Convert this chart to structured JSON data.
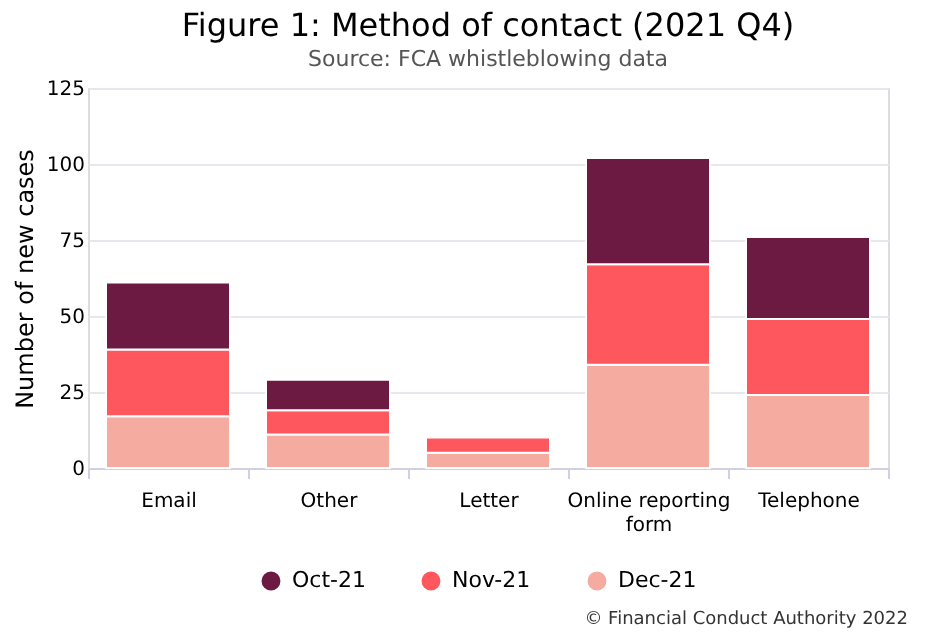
{
  "chart_data": {
    "type": "bar",
    "title": "Figure 1: Method of contact (2021 Q4)",
    "subtitle": "Source: FCA whistleblowing data",
    "ylabel": "Number of new cases",
    "categories": [
      "Email",
      "Other",
      "Letter",
      "Online reporting form",
      "Telephone"
    ],
    "stacked": true,
    "series": [
      {
        "name": "Dec-21",
        "color": "#f5aba0",
        "values": [
          17,
          11,
          5,
          34,
          24
        ]
      },
      {
        "name": "Nov-21",
        "color": "#fe575e",
        "values": [
          22,
          8,
          5,
          33,
          25
        ]
      },
      {
        "name": "Oct-21",
        "color": "#6d1a42",
        "values": [
          22,
          10,
          null,
          35,
          27
        ]
      }
    ],
    "ylim": [
      0,
      125
    ],
    "yticks": [
      0,
      25,
      50,
      75,
      100,
      125
    ],
    "grid": "y",
    "legend": "bottom",
    "annotations": [
      "© Financial Conduct Authority 2022"
    ]
  }
}
